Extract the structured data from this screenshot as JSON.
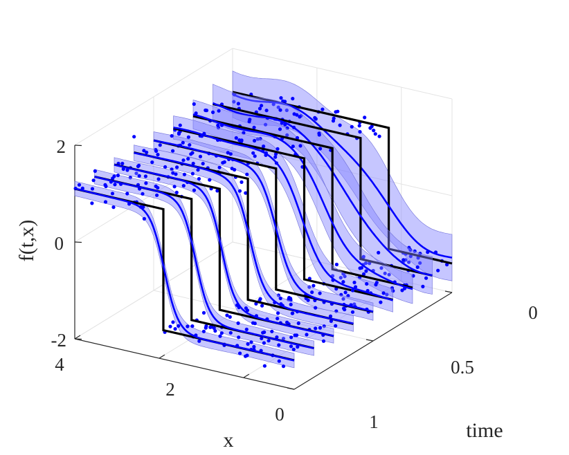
{
  "chart_data": {
    "type": "line",
    "title": "",
    "zlabel": "f(t,x)",
    "xlabel": "x",
    "ylabel": "time",
    "z_ticks": [
      "-2",
      "0",
      "2"
    ],
    "x_ticks": [
      "4",
      "2",
      "0"
    ],
    "time_ticks": [
      "0",
      "0.5",
      "1"
    ],
    "zlim": [
      -2,
      2
    ],
    "xlim": [
      -1.2,
      4
    ],
    "time_lim": [
      0,
      1
    ],
    "grid": true,
    "colors": {
      "true_solution": "#000000",
      "posterior_mean": "#0000ff",
      "observations": "#0000ff",
      "uncertainty_band": "#8080ff"
    },
    "series": [
      {
        "t": 1.0,
        "left_value": 1.1,
        "right_value": -1.4,
        "true_jump_x": 1.9,
        "estimated_jump_x": 1.88,
        "band": 0.05
      },
      {
        "t": 0.875,
        "left_value": 1.1,
        "right_value": -1.4,
        "true_jump_x": 1.7,
        "estimated_jump_x": 1.6,
        "band": 0.05
      },
      {
        "t": 0.75,
        "left_value": 1.1,
        "right_value": -1.4,
        "true_jump_x": 1.5,
        "estimated_jump_x": 1.45,
        "band": 0.05
      },
      {
        "t": 0.625,
        "left_value": 1.1,
        "right_value": -1.4,
        "true_jump_x": 1.3,
        "estimated_jump_x": 1.25,
        "band": 0.07
      },
      {
        "t": 0.5,
        "left_value": 1.1,
        "right_value": -1.4,
        "true_jump_x": 1.1,
        "estimated_jump_x": 1.1,
        "band": 0.1
      },
      {
        "t": 0.375,
        "left_value": 1.1,
        "right_value": -1.4,
        "true_jump_x": 0.9,
        "estimated_jump_x": 0.95,
        "band": 0.2
      },
      {
        "t": 0.25,
        "left_value": 1.1,
        "right_value": -1.4,
        "true_jump_x": 0.7,
        "estimated_jump_x": 0.85,
        "band": 0.3
      },
      {
        "t": 0.125,
        "left_value": 1.1,
        "right_value": -1.4,
        "true_jump_x": 0.5,
        "estimated_jump_x": 0.8,
        "band": 0.45
      },
      {
        "t": 0.0,
        "left_value": 1.1,
        "right_value": -1.4,
        "true_jump_x": 0.3,
        "estimated_jump_x": 0.7,
        "band": 0.6
      }
    ]
  }
}
